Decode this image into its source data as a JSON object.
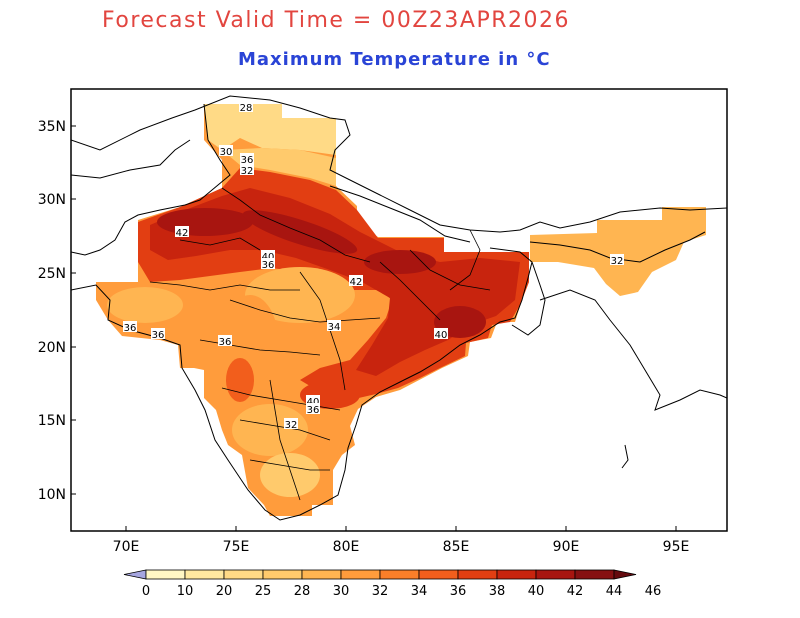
{
  "header": {
    "forecast_title": "Forecast Valid Time = 00Z23APR2026",
    "subtitle": "Maximum Temperature in °C"
  },
  "colors": {
    "title": "#e2453f",
    "subtitle": "#2a44d6",
    "frame": "#000000",
    "boundary": "#000000"
  },
  "map": {
    "lat_labels": [
      "35N",
      "30N",
      "25N",
      "20N",
      "15N",
      "10N"
    ],
    "lon_labels": [
      "70E",
      "75E",
      "80E",
      "85E",
      "90E",
      "95E"
    ],
    "contour_labels": [
      "28",
      "30",
      "36",
      "32",
      "42",
      "40",
      "36",
      "42",
      "36",
      "36",
      "36",
      "32",
      "40",
      "34",
      "40",
      "36",
      "32"
    ]
  },
  "legend": {
    "ticks": [
      "0",
      "10",
      "20",
      "25",
      "28",
      "30",
      "32",
      "34",
      "36",
      "38",
      "40",
      "42",
      "44",
      "46"
    ],
    "colors": [
      "#a6a6e0",
      "#fff7c4",
      "#ffe9a0",
      "#ffda86",
      "#ffca6c",
      "#ffb551",
      "#ff9c3c",
      "#fb7f29",
      "#f25e1c",
      "#e23e12",
      "#c8240e",
      "#a81510",
      "#861012",
      "#640a0e"
    ]
  }
}
